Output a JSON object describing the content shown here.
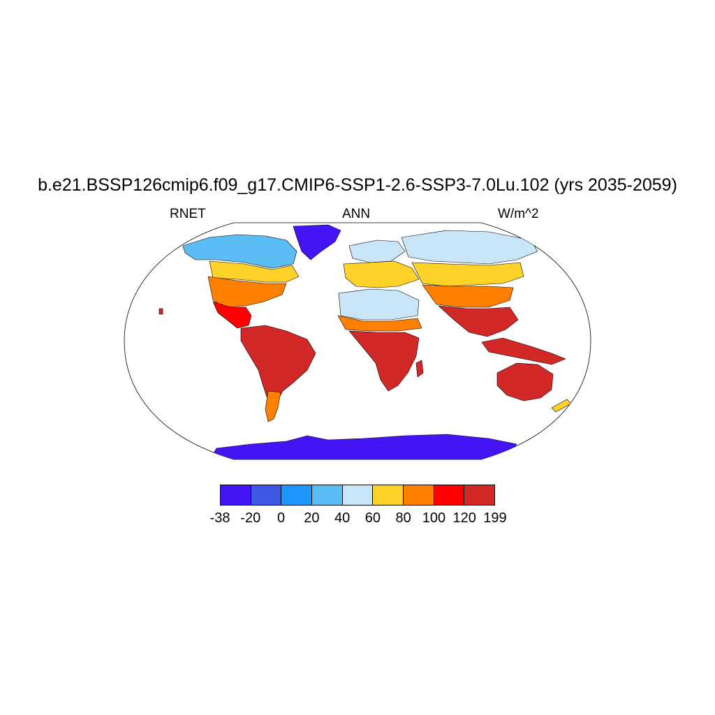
{
  "title": "b.e21.BSSP126cmip6.f09_g17.CMIP6-SSP1-2.6-SSP3-7.0Lu.102 (yrs 2035-2059)",
  "variable": "RNET",
  "season": "ANN",
  "units": "W/m^2",
  "colorbar": {
    "colors": [
      "#4514f5",
      "#3c5ae6",
      "#1e96ff",
      "#5abef5",
      "#c8e6f8",
      "#fed228",
      "#ff8000",
      "#fe0000",
      "#d22828"
    ],
    "labels": [
      "-38",
      "-20",
      "0",
      "20",
      "40",
      "60",
      "80",
      "100",
      "120",
      "199"
    ]
  },
  "map": {
    "projection": "Robinson",
    "ocean_color": "#ffffff",
    "coastline_color": "#000000"
  }
}
